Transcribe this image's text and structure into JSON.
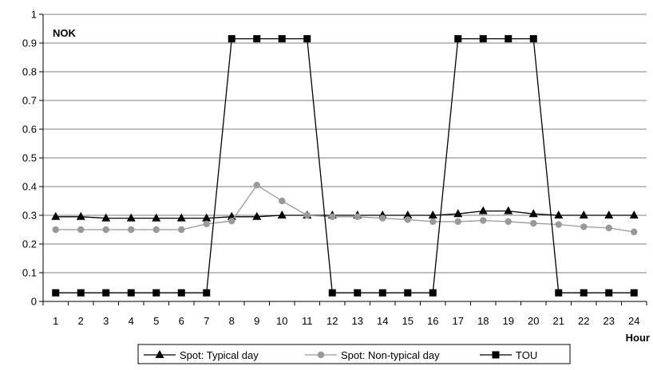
{
  "chart_data": {
    "type": "line",
    "ylabel": "NOK",
    "xlabel": "Hour",
    "ylim": [
      0,
      1
    ],
    "yticks": [
      "0",
      "0.1",
      "0.2",
      "0.3",
      "0.4",
      "0.5",
      "0.6",
      "0.7",
      "0.8",
      "0.9",
      "1"
    ],
    "x": [
      1,
      2,
      3,
      4,
      5,
      6,
      7,
      8,
      9,
      10,
      11,
      12,
      13,
      14,
      15,
      16,
      17,
      18,
      19,
      20,
      21,
      22,
      23,
      24
    ],
    "grid": true,
    "legend_position": "bottom",
    "series": [
      {
        "name": "Spot: Typical day",
        "color": "#000000",
        "marker": "triangle",
        "values": [
          0.295,
          0.295,
          0.29,
          0.29,
          0.29,
          0.29,
          0.29,
          0.295,
          0.295,
          0.3,
          0.3,
          0.3,
          0.3,
          0.3,
          0.3,
          0.3,
          0.305,
          0.315,
          0.315,
          0.305,
          0.3,
          0.3,
          0.3,
          0.3
        ]
      },
      {
        "name": "Spot: Non-typical day",
        "color": "#999999",
        "marker": "circle",
        "values": [
          0.25,
          0.25,
          0.25,
          0.25,
          0.25,
          0.25,
          0.27,
          0.28,
          0.405,
          0.35,
          0.3,
          0.295,
          0.295,
          0.29,
          0.285,
          0.278,
          0.278,
          0.282,
          0.278,
          0.272,
          0.268,
          0.26,
          0.256,
          0.242
        ]
      },
      {
        "name": "TOU",
        "color": "#000000",
        "marker": "square",
        "values": [
          0.03,
          0.03,
          0.03,
          0.03,
          0.03,
          0.03,
          0.03,
          0.915,
          0.915,
          0.915,
          0.915,
          0.03,
          0.03,
          0.03,
          0.03,
          0.03,
          0.915,
          0.915,
          0.915,
          0.915,
          0.03,
          0.03,
          0.03,
          0.03
        ]
      }
    ]
  }
}
